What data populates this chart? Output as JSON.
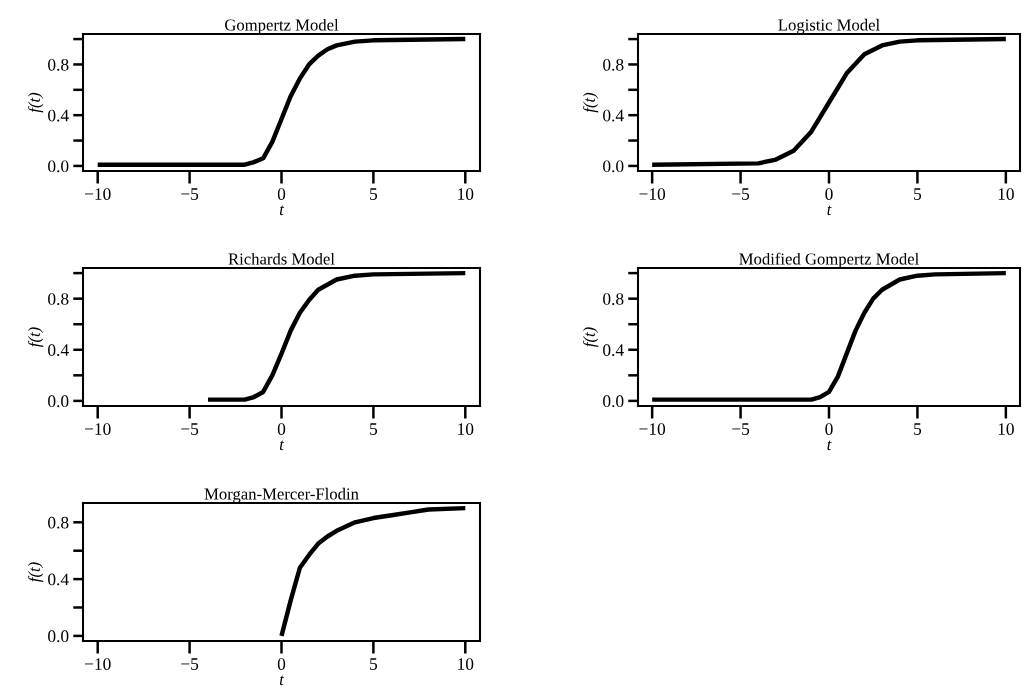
{
  "chart_data": [
    {
      "type": "line",
      "title": "Gompertz Model",
      "xlabel": "t",
      "ylabel": "f(t)",
      "xlim": [
        -10.8,
        10.8
      ],
      "ylim": [
        -0.04,
        1.04
      ],
      "xticks": [
        -10,
        -5,
        0,
        5,
        10
      ],
      "yticks": [
        {
          "value": 0,
          "label": "0.0"
        },
        {
          "value": 0.2,
          "label": null
        },
        {
          "value": 0.4,
          "label": "0.4"
        },
        {
          "value": 0.6,
          "label": null
        },
        {
          "value": 0.8,
          "label": "0.8"
        },
        {
          "value": 1.0,
          "label": null
        }
      ],
      "series": [
        {
          "color": "#000000",
          "x": [
            -10,
            -2,
            -1.5,
            -1,
            -0.5,
            0,
            0.5,
            1,
            1.5,
            2,
            2.5,
            3,
            4,
            5,
            10
          ],
          "values": [
            0.01,
            0.01,
            0.03,
            0.06,
            0.19,
            0.37,
            0.55,
            0.69,
            0.8,
            0.87,
            0.92,
            0.95,
            0.98,
            0.99,
            1.0
          ]
        }
      ]
    },
    {
      "type": "line",
      "title": "Logistic Model",
      "xlabel": "t",
      "ylabel": "f(t)",
      "xlim": [
        -10.8,
        10.8
      ],
      "ylim": [
        -0.04,
        1.04
      ],
      "xticks": [
        -10,
        -5,
        0,
        5,
        10
      ],
      "yticks": [
        {
          "value": 0,
          "label": "0.0"
        },
        {
          "value": 0.2,
          "label": null
        },
        {
          "value": 0.4,
          "label": "0.4"
        },
        {
          "value": 0.6,
          "label": null
        },
        {
          "value": 0.8,
          "label": "0.8"
        },
        {
          "value": 1.0,
          "label": null
        }
      ],
      "series": [
        {
          "color": "#000000",
          "x": [
            -10,
            -4,
            -3,
            -2,
            -1,
            0,
            1,
            2,
            3,
            4,
            5,
            10
          ],
          "values": [
            0.01,
            0.02,
            0.05,
            0.12,
            0.27,
            0.5,
            0.73,
            0.88,
            0.95,
            0.98,
            0.99,
            1.0
          ]
        }
      ]
    },
    {
      "type": "line",
      "title": "Richards Model",
      "xlabel": "t",
      "ylabel": "f(t)",
      "xlim": [
        -10.8,
        10.8
      ],
      "ylim": [
        -0.04,
        1.04
      ],
      "xticks": [
        -10,
        -5,
        0,
        5,
        10
      ],
      "yticks": [
        {
          "value": 0,
          "label": "0.0"
        },
        {
          "value": 0.2,
          "label": null
        },
        {
          "value": 0.4,
          "label": "0.4"
        },
        {
          "value": 0.6,
          "label": null
        },
        {
          "value": 0.8,
          "label": "0.8"
        },
        {
          "value": 1.0,
          "label": null
        }
      ],
      "series": [
        {
          "color": "#000000",
          "x": [
            -4,
            -2,
            -1.5,
            -1,
            -0.5,
            0,
            0.5,
            1,
            1.5,
            2,
            3,
            4,
            5,
            10
          ],
          "values": [
            0.01,
            0.01,
            0.03,
            0.07,
            0.2,
            0.37,
            0.55,
            0.69,
            0.79,
            0.87,
            0.95,
            0.98,
            0.99,
            1.0
          ]
        }
      ]
    },
    {
      "type": "line",
      "title": "Modified Gompertz Model",
      "xlabel": "t",
      "ylabel": "f(t)",
      "xlim": [
        -10.8,
        10.8
      ],
      "ylim": [
        -0.04,
        1.04
      ],
      "xticks": [
        -10,
        -5,
        0,
        5,
        10
      ],
      "yticks": [
        {
          "value": 0,
          "label": "0.0"
        },
        {
          "value": 0.2,
          "label": null
        },
        {
          "value": 0.4,
          "label": "0.4"
        },
        {
          "value": 0.6,
          "label": null
        },
        {
          "value": 0.8,
          "label": "0.8"
        },
        {
          "value": 1.0,
          "label": null
        }
      ],
      "series": [
        {
          "color": "#000000",
          "x": [
            -10,
            -1,
            -0.5,
            0,
            0.5,
            1,
            1.5,
            2,
            2.5,
            3,
            4,
            5,
            6,
            10
          ],
          "values": [
            0.01,
            0.01,
            0.03,
            0.07,
            0.19,
            0.37,
            0.55,
            0.69,
            0.8,
            0.87,
            0.95,
            0.98,
            0.99,
            1.0
          ]
        }
      ]
    },
    {
      "type": "line",
      "title": "Morgan-Mercer-Flodin",
      "xlabel": "t",
      "ylabel": "f(t)",
      "xlim": [
        -10.8,
        10.8
      ],
      "ylim": [
        -0.036,
        0.936
      ],
      "xticks": [
        -10,
        -5,
        0,
        5,
        10
      ],
      "yticks": [
        {
          "value": 0,
          "label": "0.0"
        },
        {
          "value": 0.2,
          "label": null
        },
        {
          "value": 0.4,
          "label": "0.4"
        },
        {
          "value": 0.6,
          "label": null
        },
        {
          "value": 0.8,
          "label": "0.8"
        }
      ],
      "series": [
        {
          "color": "#000000",
          "x": [
            0,
            0.5,
            1,
            1.5,
            2,
            2.5,
            3,
            4,
            5,
            6,
            7,
            8,
            10
          ],
          "values": [
            0.0,
            0.25,
            0.48,
            0.57,
            0.65,
            0.7,
            0.74,
            0.8,
            0.83,
            0.85,
            0.87,
            0.89,
            0.9
          ]
        }
      ]
    }
  ]
}
